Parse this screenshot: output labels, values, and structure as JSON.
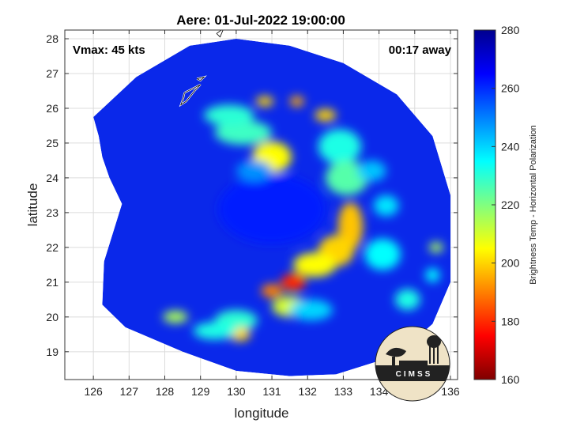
{
  "chart_data": {
    "type": "heatmap",
    "title": "Aere: 01-Jul-2022 19:00:00",
    "xlabel": "longitude",
    "ylabel": "latitude",
    "xlim": [
      125.2,
      136.2
    ],
    "ylim": [
      18.2,
      28.25
    ],
    "xticks": [
      126,
      127,
      128,
      129,
      130,
      131,
      132,
      133,
      134,
      135,
      136
    ],
    "yticks": [
      19,
      20,
      21,
      22,
      23,
      24,
      25,
      26,
      27,
      28
    ],
    "grid": true,
    "colorbar": {
      "label": "Brightness Temp - Horizontal Polarization",
      "range": [
        160,
        280
      ],
      "ticks": [
        160,
        180,
        200,
        220,
        240,
        260,
        280
      ],
      "colormap": [
        "#7f0000",
        "#ff0000",
        "#ff8000",
        "#ffff00",
        "#80ff80",
        "#00ffff",
        "#0080ff",
        "#0000ff",
        "#00008f"
      ]
    },
    "annotations": {
      "vmax": "Vmax: 45 kts",
      "away": "00:17 away"
    },
    "logo_text": "CIMSS",
    "swath_polygon": [
      [
        126.0,
        25.75
      ],
      [
        126.15,
        25.2
      ],
      [
        126.25,
        24.6
      ],
      [
        126.45,
        24.0
      ],
      [
        126.8,
        23.25
      ],
      [
        126.3,
        21.6
      ],
      [
        126.25,
        20.35
      ],
      [
        126.9,
        19.7
      ],
      [
        128.5,
        19.0
      ],
      [
        130.0,
        18.45
      ],
      [
        131.5,
        18.3
      ],
      [
        132.8,
        18.35
      ],
      [
        134.5,
        18.9
      ],
      [
        135.5,
        19.8
      ],
      [
        136.0,
        21.0
      ],
      [
        136.0,
        23.5
      ],
      [
        135.5,
        25.2
      ],
      [
        134.5,
        26.4
      ],
      [
        133.0,
        27.3
      ],
      [
        131.5,
        27.8
      ],
      [
        130.0,
        28.0
      ],
      [
        128.7,
        27.8
      ],
      [
        127.2,
        26.9
      ]
    ],
    "features": [
      {
        "kind": "eye",
        "lon": 131.0,
        "lat": 23.1,
        "tb": 262,
        "rx": 1.5,
        "ry": 1.0
      },
      {
        "kind": "band",
        "lon": 131.1,
        "lat": 24.45,
        "tb": 175,
        "rx": 0.25,
        "ry": 0.25
      },
      {
        "kind": "band",
        "lon": 131.0,
        "lat": 24.6,
        "tb": 205,
        "rx": 0.55,
        "ry": 0.45
      },
      {
        "kind": "band",
        "lon": 130.2,
        "lat": 25.3,
        "tb": 228,
        "rx": 0.8,
        "ry": 0.35
      },
      {
        "kind": "band",
        "lon": 129.8,
        "lat": 25.8,
        "tb": 230,
        "rx": 0.7,
        "ry": 0.3
      },
      {
        "kind": "band",
        "lon": 130.8,
        "lat": 26.2,
        "tb": 200,
        "rx": 0.25,
        "ry": 0.15
      },
      {
        "kind": "band",
        "lon": 131.7,
        "lat": 26.2,
        "tb": 195,
        "rx": 0.2,
        "ry": 0.15
      },
      {
        "kind": "band",
        "lon": 132.5,
        "lat": 25.8,
        "tb": 200,
        "rx": 0.3,
        "ry": 0.18
      },
      {
        "kind": "band",
        "lon": 132.9,
        "lat": 24.9,
        "tb": 232,
        "rx": 0.6,
        "ry": 0.5
      },
      {
        "kind": "band",
        "lon": 133.1,
        "lat": 24.0,
        "tb": 225,
        "rx": 0.6,
        "ry": 0.5
      },
      {
        "kind": "band",
        "lon": 133.2,
        "lat": 22.6,
        "tb": 198,
        "rx": 0.35,
        "ry": 0.7
      },
      {
        "kind": "band",
        "lon": 132.8,
        "lat": 21.9,
        "tb": 200,
        "rx": 0.5,
        "ry": 0.45
      },
      {
        "kind": "band",
        "lon": 132.2,
        "lat": 21.5,
        "tb": 205,
        "rx": 0.6,
        "ry": 0.35
      },
      {
        "kind": "band",
        "lon": 131.6,
        "lat": 21.0,
        "tb": 180,
        "rx": 0.35,
        "ry": 0.25
      },
      {
        "kind": "band",
        "lon": 131.0,
        "lat": 20.75,
        "tb": 190,
        "rx": 0.3,
        "ry": 0.2
      },
      {
        "kind": "band",
        "lon": 131.5,
        "lat": 20.3,
        "tb": 210,
        "rx": 0.5,
        "ry": 0.3
      },
      {
        "kind": "band",
        "lon": 130.0,
        "lat": 19.9,
        "tb": 230,
        "rx": 0.6,
        "ry": 0.3
      },
      {
        "kind": "band",
        "lon": 130.1,
        "lat": 19.5,
        "tb": 200,
        "rx": 0.3,
        "ry": 0.2
      },
      {
        "kind": "band",
        "lon": 128.3,
        "lat": 20.0,
        "tb": 215,
        "rx": 0.35,
        "ry": 0.18
      },
      {
        "kind": "band",
        "lon": 129.4,
        "lat": 19.6,
        "tb": 232,
        "rx": 0.6,
        "ry": 0.25
      },
      {
        "kind": "band",
        "lon": 134.1,
        "lat": 21.8,
        "tb": 235,
        "rx": 0.5,
        "ry": 0.45
      },
      {
        "kind": "band",
        "lon": 134.8,
        "lat": 20.5,
        "tb": 232,
        "rx": 0.35,
        "ry": 0.3
      },
      {
        "kind": "band",
        "lon": 135.6,
        "lat": 22.0,
        "tb": 215,
        "rx": 0.2,
        "ry": 0.15
      },
      {
        "kind": "band",
        "lon": 135.5,
        "lat": 21.2,
        "tb": 235,
        "rx": 0.2,
        "ry": 0.2
      },
      {
        "kind": "band",
        "lon": 134.2,
        "lat": 23.2,
        "tb": 238,
        "rx": 0.35,
        "ry": 0.3
      },
      {
        "kind": "band",
        "lon": 133.8,
        "lat": 24.2,
        "tb": 242,
        "rx": 0.4,
        "ry": 0.3
      },
      {
        "kind": "band",
        "lon": 130.5,
        "lat": 24.2,
        "tb": 248,
        "rx": 0.5,
        "ry": 0.3
      },
      {
        "kind": "band",
        "lon": 132.1,
        "lat": 20.2,
        "tb": 240,
        "rx": 0.6,
        "ry": 0.3
      }
    ],
    "coastlines": [
      [
        [
          128.55,
          26.45
        ],
        [
          128.75,
          26.55
        ],
        [
          129.0,
          26.68
        ],
        [
          128.85,
          26.52
        ],
        [
          128.6,
          26.2
        ],
        [
          128.45,
          26.1
        ],
        [
          128.52,
          26.3
        ],
        [
          128.55,
          26.45
        ]
      ],
      [
        [
          129.45,
          28.15
        ],
        [
          129.65,
          28.3
        ],
        [
          129.55,
          28.05
        ],
        [
          129.45,
          28.15
        ]
      ],
      [
        [
          128.9,
          26.85
        ],
        [
          129.1,
          26.9
        ],
        [
          129.0,
          26.8
        ],
        [
          128.9,
          26.85
        ]
      ]
    ]
  }
}
